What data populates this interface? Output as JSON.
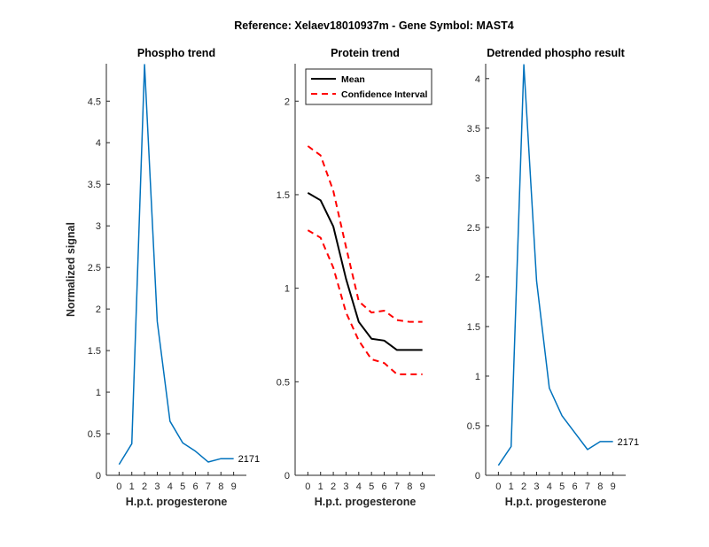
{
  "figure_title": "Reference:  Xelaev18010937m - Gene Symbol:  MAST4",
  "colors": {
    "phospho": "#0072BD",
    "mean": "#000000",
    "ci": "#FF0000",
    "axis": "#262626"
  },
  "chart_data": [
    {
      "type": "line",
      "title": "Phospho trend",
      "xlabel": "H.p.t. progesterone",
      "ylabel": "Normalized signal",
      "xlim": [
        -1,
        10
      ],
      "ylim": [
        0,
        4.95
      ],
      "xticks": [
        0,
        1,
        2,
        3,
        4,
        5,
        6,
        7,
        8,
        9
      ],
      "yticks": [
        0,
        0.5,
        1,
        1.5,
        2,
        2.5,
        3,
        3.5,
        4,
        4.5
      ],
      "grid": false,
      "series": [
        {
          "x": [
            0,
            1,
            2,
            3,
            4,
            5,
            6,
            7,
            8,
            9
          ],
          "y": [
            0.13,
            0.38,
            4.94,
            1.85,
            0.65,
            0.39,
            0.29,
            0.16,
            0.2,
            0.2
          ],
          "style": "solid",
          "color": "#0072BD"
        }
      ],
      "annotations": [
        {
          "text": "2171",
          "x": 9,
          "y": 0.2
        }
      ]
    },
    {
      "type": "line",
      "title": "Protein trend",
      "xlabel": "H.p.t. progesterone",
      "ylabel": "",
      "xlim": [
        -1,
        10
      ],
      "ylim": [
        0,
        2.2
      ],
      "xticks": [
        0,
        1,
        2,
        3,
        4,
        5,
        6,
        7,
        8,
        9
      ],
      "yticks": [
        0,
        0.5,
        1,
        1.5,
        2
      ],
      "grid": false,
      "legend": {
        "position": "top-left"
      },
      "series": [
        {
          "name": "Mean",
          "x": [
            0,
            1,
            2,
            3,
            4,
            5,
            6,
            7,
            8,
            9
          ],
          "y": [
            1.51,
            1.47,
            1.33,
            1.05,
            0.82,
            0.73,
            0.72,
            0.67,
            0.67,
            0.67
          ],
          "style": "solid",
          "color": "#000000"
        },
        {
          "name": "Confidence Interval",
          "x": [
            0,
            1,
            2,
            3,
            4,
            5,
            6,
            7,
            8,
            9
          ],
          "y": [
            1.76,
            1.71,
            1.52,
            1.22,
            0.93,
            0.87,
            0.88,
            0.83,
            0.82,
            0.82
          ],
          "style": "dashed",
          "color": "#FF0000"
        },
        {
          "x": [
            0,
            1,
            2,
            3,
            4,
            5,
            6,
            7,
            8,
            9
          ],
          "y": [
            1.31,
            1.27,
            1.11,
            0.87,
            0.72,
            0.62,
            0.6,
            0.54,
            0.54,
            0.54
          ],
          "style": "dashed",
          "color": "#FF0000"
        }
      ]
    },
    {
      "type": "line",
      "title": "Detrended phospho result",
      "xlabel": "H.p.t. progesterone",
      "ylabel": "",
      "xlim": [
        -1,
        10
      ],
      "ylim": [
        0,
        4.15
      ],
      "xticks": [
        0,
        1,
        2,
        3,
        4,
        5,
        6,
        7,
        8,
        9
      ],
      "yticks": [
        0,
        0.5,
        1,
        1.5,
        2,
        2.5,
        3,
        3.5,
        4
      ],
      "grid": false,
      "series": [
        {
          "x": [
            0,
            1,
            2,
            3,
            4,
            5,
            6,
            7,
            8,
            9
          ],
          "y": [
            0.1,
            0.29,
            4.14,
            1.96,
            0.88,
            0.6,
            0.43,
            0.26,
            0.34,
            0.34
          ],
          "style": "solid",
          "color": "#0072BD"
        }
      ],
      "annotations": [
        {
          "text": "2171",
          "x": 9,
          "y": 0.34
        }
      ]
    }
  ]
}
